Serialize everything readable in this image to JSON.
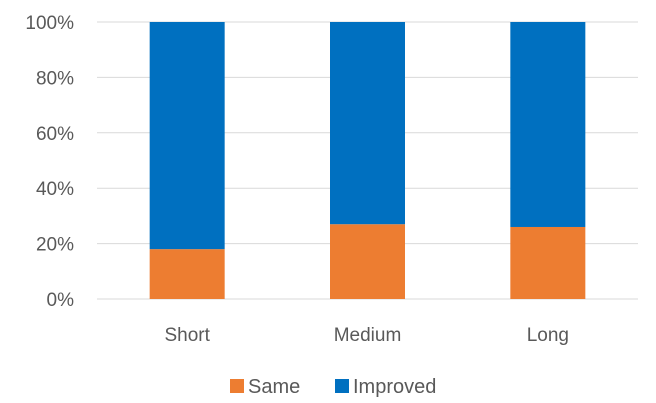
{
  "chart_data": {
    "type": "bar",
    "stacked": true,
    "percent_stacked": true,
    "categories": [
      "Short",
      "Medium",
      "Long"
    ],
    "series": [
      {
        "name": "Same",
        "values": [
          18,
          27,
          26
        ],
        "color": "#ED7D31"
      },
      {
        "name": "Improved",
        "values": [
          82,
          73,
          74
        ],
        "color": "#0070C0"
      }
    ],
    "ylim": [
      0,
      100
    ],
    "y_ticks": [
      0,
      20,
      40,
      60,
      80,
      100
    ],
    "y_tick_labels": [
      "0%",
      "20%",
      "40%",
      "60%",
      "80%",
      "100%"
    ],
    "title": "",
    "xlabel": "",
    "ylabel": "",
    "grid": true,
    "gridline_color": "#D9D9D9",
    "legend_position": "bottom"
  }
}
